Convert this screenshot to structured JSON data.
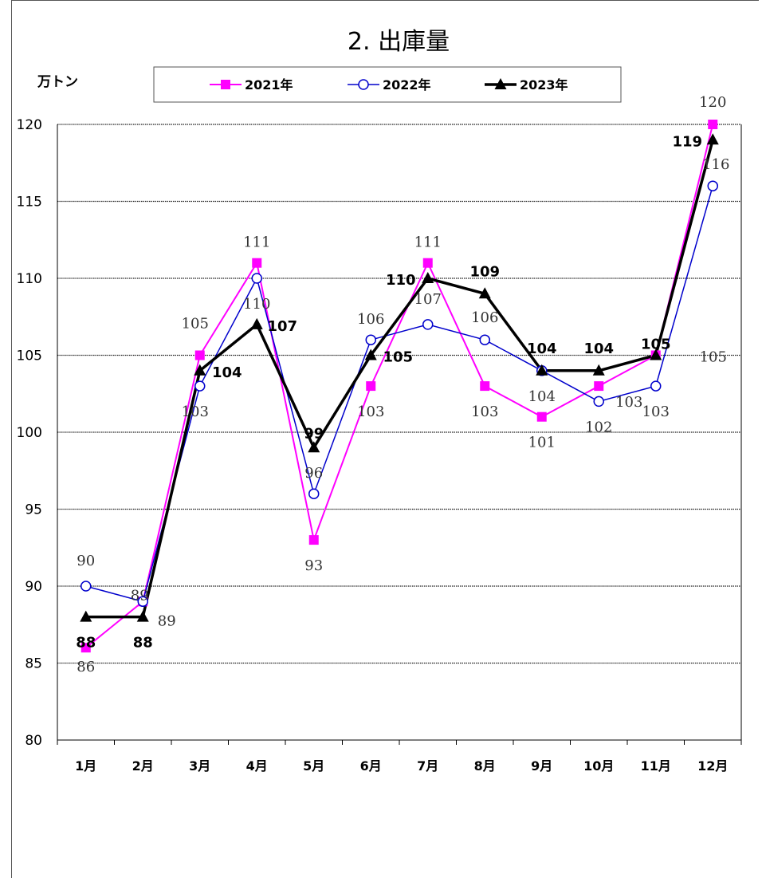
{
  "chart_data": {
    "type": "line",
    "title": "2. 出庫量",
    "ylabel": "万トン",
    "xlabel": "",
    "ylim": [
      80,
      120
    ],
    "yticks": [
      80,
      85,
      90,
      95,
      100,
      105,
      110,
      115,
      120
    ],
    "grid": true,
    "legend_position": "top",
    "categories": [
      "1月",
      "2月",
      "3月",
      "4月",
      "5月",
      "6月",
      "7月",
      "8月",
      "9月",
      "10月",
      "11月",
      "12月"
    ],
    "series": [
      {
        "name": "2021年",
        "color": "#ff00ff",
        "marker": "square",
        "values": [
          86,
          89,
          105,
          111,
          93,
          103,
          111,
          103,
          101,
          103,
          105,
          120
        ]
      },
      {
        "name": "2022年",
        "color": "#0000cc",
        "marker": "circle-open",
        "values": [
          90,
          89,
          103,
          110,
          96,
          106,
          107,
          106,
          104,
          102,
          103,
          116
        ]
      },
      {
        "name": "2023年",
        "color": "#000000",
        "marker": "triangle",
        "values": [
          88,
          88,
          104,
          107,
          99,
          105,
          110,
          109,
          104,
          104,
          105,
          119
        ]
      }
    ]
  }
}
